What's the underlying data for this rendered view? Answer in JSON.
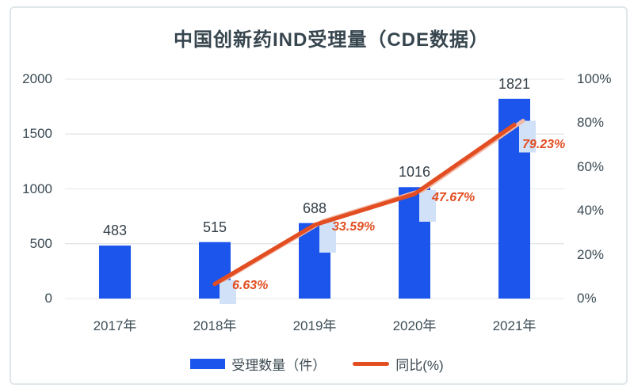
{
  "chart_data": {
    "type": "bar",
    "combo": "bar+line",
    "title": "中国创新药IND受理量（CDE数据）",
    "categories": [
      "2017年",
      "2018年",
      "2019年",
      "2020年",
      "2021年"
    ],
    "left_axis": {
      "min": 0,
      "max": 2000,
      "ticks": [
        {
          "value": 2000,
          "label": "2000"
        },
        {
          "value": 1500,
          "label": "1500"
        },
        {
          "value": 1000,
          "label": "1000"
        },
        {
          "value": 500,
          "label": "500"
        },
        {
          "value": 0,
          "label": "0"
        }
      ]
    },
    "right_axis": {
      "min": 0,
      "max": 100,
      "ticks": [
        {
          "value": 100,
          "label": "100%"
        },
        {
          "value": 80,
          "label": "80%"
        },
        {
          "value": 60,
          "label": "60%"
        },
        {
          "value": 40,
          "label": "40%"
        },
        {
          "value": 20,
          "label": "20%"
        },
        {
          "value": 0,
          "label": "0%"
        }
      ]
    },
    "series": [
      {
        "name": "受理数量（件）",
        "type": "bar",
        "axis": "left",
        "color": "#1b55ec",
        "values": [
          483,
          515,
          688,
          1016,
          1821
        ],
        "data_labels": [
          "483",
          "515",
          "688",
          "1016",
          "1821"
        ]
      },
      {
        "name": "同比(%)",
        "type": "line",
        "axis": "right",
        "color": "#e24e22",
        "shadow_color": "#f3b9a6",
        "marker_color": "#d0e1f8",
        "values": [
          null,
          6.63,
          33.59,
          47.67,
          79.23
        ],
        "data_labels": [
          null,
          "6.63%",
          "33.59%",
          "47.67%",
          "79.23%"
        ],
        "label_offsets": [
          null,
          [
            22,
            -7
          ],
          [
            22,
            -6
          ],
          [
            22,
            -4
          ],
          [
            10,
            16
          ]
        ]
      }
    ],
    "legend": [
      "受理数量（件）",
      "同比(%)"
    ],
    "grid": true,
    "legend_position": "bottom"
  }
}
